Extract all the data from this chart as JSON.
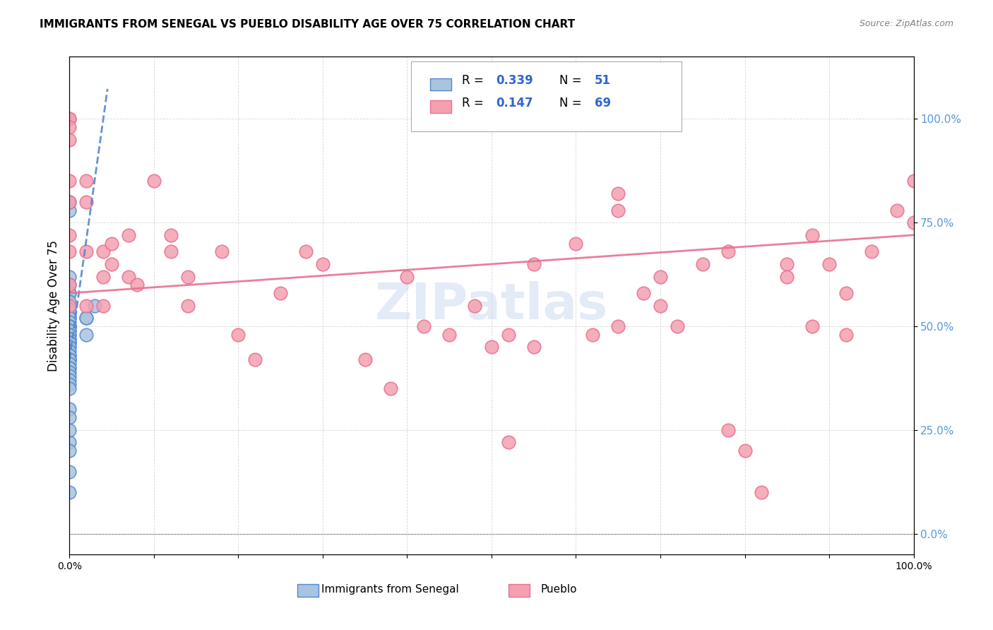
{
  "title": "IMMIGRANTS FROM SENEGAL VS PUEBLO DISABILITY AGE OVER 75 CORRELATION CHART",
  "source": "Source: ZipAtlas.com",
  "xlabel": "",
  "ylabel": "Disability Age Over 75",
  "xlim": [
    0,
    1.0
  ],
  "ylim": [
    -0.05,
    1.15
  ],
  "ytick_labels": [
    "0.0%",
    "25.0%",
    "50.0%",
    "75.0%",
    "100.0%"
  ],
  "ytick_values": [
    0.0,
    0.25,
    0.5,
    0.75,
    1.0
  ],
  "xtick_labels": [
    "0.0%",
    "",
    "",
    "",
    "",
    "",
    "",
    "",
    "",
    "",
    "100.0%"
  ],
  "xtick_values": [
    0.0,
    0.1,
    0.2,
    0.3,
    0.4,
    0.5,
    0.6,
    0.7,
    0.8,
    0.9,
    1.0
  ],
  "legend_r1": "R = 0.339",
  "legend_n1": "N = 51",
  "legend_r2": "R = 0.147",
  "legend_n2": "N = 69",
  "color_blue": "#a8c4e0",
  "color_pink": "#f4a0b0",
  "color_blue_line": "#5588cc",
  "color_pink_line": "#e87090",
  "watermark": "ZIPatlas",
  "blue_points_x": [
    0.0,
    0.0,
    0.0,
    0.0,
    0.0,
    0.0,
    0.0,
    0.0,
    0.0,
    0.0,
    0.0,
    0.0,
    0.0,
    0.0,
    0.0,
    0.0,
    0.0,
    0.0,
    0.0,
    0.0,
    0.0,
    0.0,
    0.0,
    0.0,
    0.0,
    0.0,
    0.0,
    0.0,
    0.0,
    0.0,
    0.0,
    0.0,
    0.0,
    0.0,
    0.0,
    0.0,
    0.0,
    0.0,
    0.0,
    0.0,
    0.0,
    0.0,
    0.0,
    0.0,
    0.0,
    0.02,
    0.02,
    0.02,
    0.03,
    0.0,
    0.0
  ],
  "blue_points_y": [
    0.58,
    0.62,
    0.6,
    0.58,
    0.56,
    0.54,
    0.52,
    0.52,
    0.51,
    0.5,
    0.5,
    0.5,
    0.5,
    0.49,
    0.49,
    0.48,
    0.48,
    0.47,
    0.47,
    0.46,
    0.46,
    0.46,
    0.45,
    0.45,
    0.44,
    0.43,
    0.43,
    0.42,
    0.42,
    0.42,
    0.41,
    0.4,
    0.4,
    0.39,
    0.38,
    0.37,
    0.36,
    0.35,
    0.3,
    0.28,
    0.22,
    0.2,
    0.15,
    0.78,
    0.8,
    0.52,
    0.48,
    0.52,
    0.55,
    0.25,
    0.1
  ],
  "pink_points_x": [
    0.0,
    0.0,
    0.0,
    0.0,
    0.0,
    0.0,
    0.0,
    0.0,
    0.0,
    0.0,
    0.02,
    0.02,
    0.02,
    0.02,
    0.04,
    0.04,
    0.04,
    0.05,
    0.05,
    0.07,
    0.07,
    0.08,
    0.1,
    0.12,
    0.12,
    0.14,
    0.14,
    0.18,
    0.2,
    0.22,
    0.25,
    0.28,
    0.3,
    0.35,
    0.38,
    0.4,
    0.42,
    0.45,
    0.48,
    0.5,
    0.52,
    0.55,
    0.6,
    0.62,
    0.65,
    0.65,
    0.68,
    0.7,
    0.72,
    0.75,
    0.78,
    0.8,
    0.82,
    0.85,
    0.88,
    0.9,
    0.92,
    0.95,
    0.98,
    1.0,
    0.52,
    0.55,
    0.65,
    0.7,
    0.78,
    0.85,
    0.88,
    0.92,
    1.0
  ],
  "pink_points_y": [
    1.0,
    1.0,
    0.98,
    0.95,
    0.85,
    0.8,
    0.72,
    0.68,
    0.6,
    0.55,
    0.85,
    0.8,
    0.68,
    0.55,
    0.68,
    0.62,
    0.55,
    0.7,
    0.65,
    0.72,
    0.62,
    0.6,
    0.85,
    0.72,
    0.68,
    0.62,
    0.55,
    0.68,
    0.48,
    0.42,
    0.58,
    0.68,
    0.65,
    0.42,
    0.35,
    0.62,
    0.5,
    0.48,
    0.55,
    0.45,
    0.22,
    0.65,
    0.7,
    0.48,
    0.82,
    0.78,
    0.58,
    0.62,
    0.5,
    0.65,
    0.25,
    0.2,
    0.1,
    0.65,
    0.72,
    0.65,
    0.58,
    0.68,
    0.78,
    0.75,
    0.48,
    0.45,
    0.5,
    0.55,
    0.68,
    0.62,
    0.5,
    0.48,
    0.85
  ]
}
